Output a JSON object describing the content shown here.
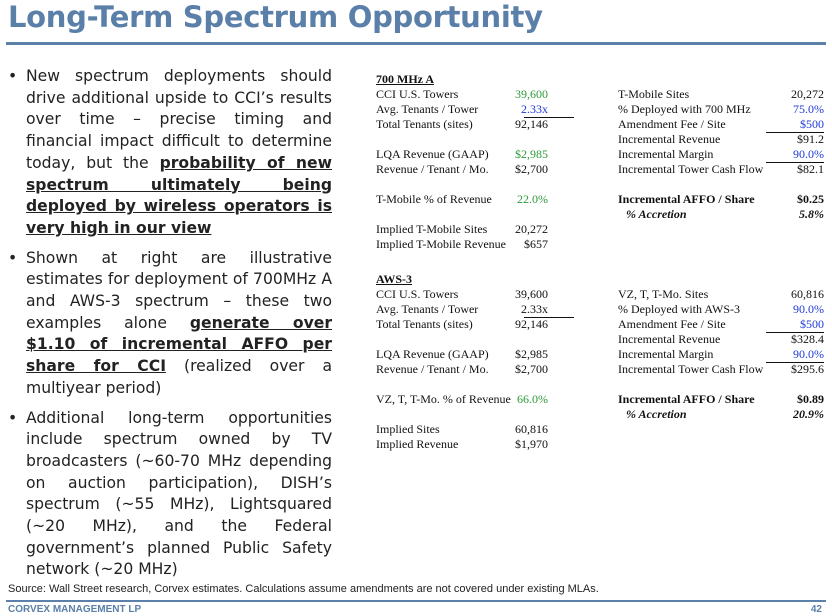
{
  "title": "Long-Term Spectrum Opportunity",
  "bullets": [
    {
      "dot": "•",
      "parts": [
        {
          "text": "New spectrum deployments should drive additional upside to CCI’s results over time – precise timing and financial impact difficult to determine today, but the ",
          "emph": false
        },
        {
          "text": "probability of new spectrum ultimately being deployed by wireless operators is very high in our view",
          "emph": true
        }
      ]
    },
    {
      "dot": "•",
      "parts": [
        {
          "text": "Shown at right are illustrative estimates for deployment of 700MHz A and AWS-3 spectrum – these two examples alone ",
          "emph": false
        },
        {
          "text": "generate over $1.10 of incremental AFFO per share for CCI",
          "emph": true
        },
        {
          "text": " (realized over a multiyear period)",
          "emph": false
        }
      ]
    },
    {
      "dot": "•",
      "parts": [
        {
          "text": "Additional long-term opportunities include spectrum owned by TV broadcasters (~60-70 MHz depending on auction participation), DISH’s spectrum (~55 MHz), Lightsquared (~20 MHz), and the Federal government’s planned Public Safety network (~20 MHz)",
          "emph": false
        }
      ]
    }
  ],
  "s700": {
    "header": "700 MHz A",
    "left": {
      "towers": {
        "label": "CCI U.S. Towers",
        "value": "39,600"
      },
      "avg": {
        "label": "Avg. Tenants / Tower",
        "value": "2.33x"
      },
      "total": {
        "label": "Total Tenants (sites)",
        "value": "92,146"
      },
      "lqa": {
        "label": "LQA Revenue (GAAP)",
        "value": "$2,985"
      },
      "rev": {
        "label": "Revenue / Tenant / Mo.",
        "value": "$2,700"
      },
      "pct": {
        "label": "T-Mobile % of Revenue",
        "value": "22.0%"
      },
      "isites": {
        "label": "Implied T-Mobile Sites",
        "value": "20,272"
      },
      "irev": {
        "label": "Implied T-Mobile Revenue",
        "value": "$657"
      }
    },
    "right": {
      "sites": {
        "label": "T-Mobile Sites",
        "value": "20,272"
      },
      "deployed": {
        "label": "% Deployed with 700 MHz",
        "value": "75.0%"
      },
      "fee": {
        "label": "Amendment Fee / Site",
        "value": "$500"
      },
      "increv": {
        "label": "Incremental Revenue",
        "value": "$91.2"
      },
      "margin": {
        "label": "Incremental Margin",
        "value": "90.0%"
      },
      "cash": {
        "label": "Incremental Tower Cash Flow",
        "value": "$82.1"
      },
      "affo": {
        "label": "Incremental AFFO / Share",
        "value": "$0.25"
      },
      "accr": {
        "label": "% Accretion",
        "value": "5.8%"
      }
    }
  },
  "aws": {
    "header": "AWS-3",
    "left": {
      "towers": {
        "label": "CCI U.S. Towers",
        "value": "39,600"
      },
      "avg": {
        "label": "Avg. Tenants / Tower",
        "value": "2.33x"
      },
      "total": {
        "label": "Total Tenants (sites)",
        "value": "92,146"
      },
      "lqa": {
        "label": "LQA Revenue (GAAP)",
        "value": "$2,985"
      },
      "rev": {
        "label": "Revenue / Tenant / Mo.",
        "value": "$2,700"
      },
      "pct": {
        "label": "VZ, T, T-Mo. % of Revenue",
        "value": "66.0%"
      },
      "isites": {
        "label": "Implied Sites",
        "value": "60,816"
      },
      "irev": {
        "label": "Implied Revenue",
        "value": "$1,970"
      }
    },
    "right": {
      "sites": {
        "label": "VZ, T, T-Mo. Sites",
        "value": "60,816"
      },
      "deployed": {
        "label": "% Deployed with AWS-3",
        "value": "90.0%"
      },
      "fee": {
        "label": "Amendment Fee / Site",
        "value": "$500"
      },
      "increv": {
        "label": "Incremental Revenue",
        "value": "$328.4"
      },
      "margin": {
        "label": "Incremental Margin",
        "value": "90.0%"
      },
      "cash": {
        "label": "Incremental Tower Cash Flow",
        "value": "$295.6"
      },
      "affo": {
        "label": "Incremental AFFO / Share",
        "value": "$0.89"
      },
      "accr": {
        "label": "% Accretion",
        "value": "20.9%"
      }
    }
  },
  "footer": {
    "source": "Source: Wall Street research, Corvex estimates.  Calculations assume amendments are not covered under existing MLAs.",
    "company": "CORVEX MANAGEMENT LP",
    "page": "42"
  }
}
